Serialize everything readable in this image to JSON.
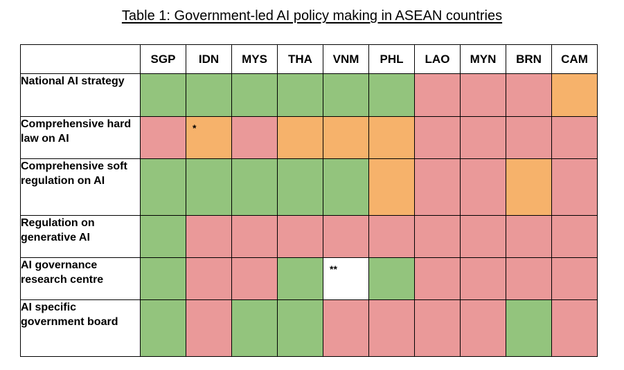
{
  "title": "Table 1: Government-led AI policy making in ASEAN countries",
  "columns": [
    "SGP",
    "IDN",
    "MYS",
    "THA",
    "VNM",
    "PHL",
    "LAO",
    "MYN",
    "BRN",
    "CAM"
  ],
  "status_colors": {
    "green": "#93c47d",
    "red": "#ea9999",
    "orange": "#f6b26b",
    "white": "#ffffff"
  },
  "rows": [
    {
      "label": "National AI strategy",
      "cells": [
        {
          "status": "green"
        },
        {
          "status": "green"
        },
        {
          "status": "green"
        },
        {
          "status": "green"
        },
        {
          "status": "green"
        },
        {
          "status": "green"
        },
        {
          "status": "red"
        },
        {
          "status": "red"
        },
        {
          "status": "red"
        },
        {
          "status": "orange"
        }
      ]
    },
    {
      "label": "Comprehensive hard law on AI",
      "cells": [
        {
          "status": "red"
        },
        {
          "status": "orange",
          "note": "*"
        },
        {
          "status": "red"
        },
        {
          "status": "orange"
        },
        {
          "status": "orange"
        },
        {
          "status": "orange"
        },
        {
          "status": "red"
        },
        {
          "status": "red"
        },
        {
          "status": "red"
        },
        {
          "status": "red"
        }
      ]
    },
    {
      "label": "Comprehensive soft regulation on AI",
      "cells": [
        {
          "status": "green"
        },
        {
          "status": "green"
        },
        {
          "status": "green"
        },
        {
          "status": "green"
        },
        {
          "status": "green"
        },
        {
          "status": "orange"
        },
        {
          "status": "red"
        },
        {
          "status": "red"
        },
        {
          "status": "orange"
        },
        {
          "status": "red"
        }
      ]
    },
    {
      "label": "Regulation on generative AI",
      "cells": [
        {
          "status": "green"
        },
        {
          "status": "red"
        },
        {
          "status": "red"
        },
        {
          "status": "red"
        },
        {
          "status": "red"
        },
        {
          "status": "red"
        },
        {
          "status": "red"
        },
        {
          "status": "red"
        },
        {
          "status": "red"
        },
        {
          "status": "red"
        }
      ]
    },
    {
      "label": "AI governance research centre",
      "cells": [
        {
          "status": "green"
        },
        {
          "status": "red"
        },
        {
          "status": "red"
        },
        {
          "status": "green"
        },
        {
          "status": "white",
          "note": "**"
        },
        {
          "status": "green"
        },
        {
          "status": "red"
        },
        {
          "status": "red"
        },
        {
          "status": "red"
        },
        {
          "status": "red"
        }
      ]
    },
    {
      "label": "AI specific government board",
      "cells": [
        {
          "status": "green"
        },
        {
          "status": "red"
        },
        {
          "status": "green"
        },
        {
          "status": "green"
        },
        {
          "status": "red"
        },
        {
          "status": "red"
        },
        {
          "status": "red"
        },
        {
          "status": "red"
        },
        {
          "status": "green"
        },
        {
          "status": "red"
        }
      ]
    }
  ]
}
